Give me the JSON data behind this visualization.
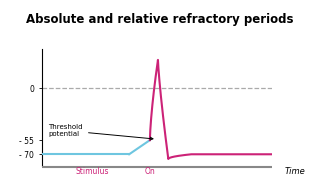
{
  "title": "Absolute and relative refractory periods",
  "title_fontsize": 8.5,
  "title_bg": "#fef9e0",
  "title_edge": "#333333",
  "bg_color": "#ffffff",
  "plot_bg": "#ffffff",
  "ytick_vals": [
    0,
    -55,
    -70
  ],
  "ytick_labels": [
    "0",
    "- 55",
    "- 70"
  ],
  "xlabel": "Time",
  "stimulus_label": "Stimulus",
  "on_label": "On",
  "threshold_label": "Threshold\npotential",
  "resting_mv": -70,
  "threshold_mv": -55,
  "action_peak": 30,
  "undershoot_mv": -75,
  "xlim": [
    0,
    10
  ],
  "ylim": [
    -82,
    42
  ],
  "resting_color": "#6ec6e0",
  "action_color": "#cc2277",
  "dashed_color": "#aaaaaa",
  "axis_color": "#888888",
  "timeline_color": "#888888",
  "text_pink": "#cc2277",
  "resting_x_end": 3.8,
  "threshold_x_start": 3.8,
  "threshold_x_end": 4.7,
  "spike_x_peak": 5.05,
  "spike_x_end": 5.5,
  "undershoot_x_end": 6.5,
  "recovery_x_end": 10.0,
  "stimulus_x": 2.2,
  "on_x": 4.7
}
